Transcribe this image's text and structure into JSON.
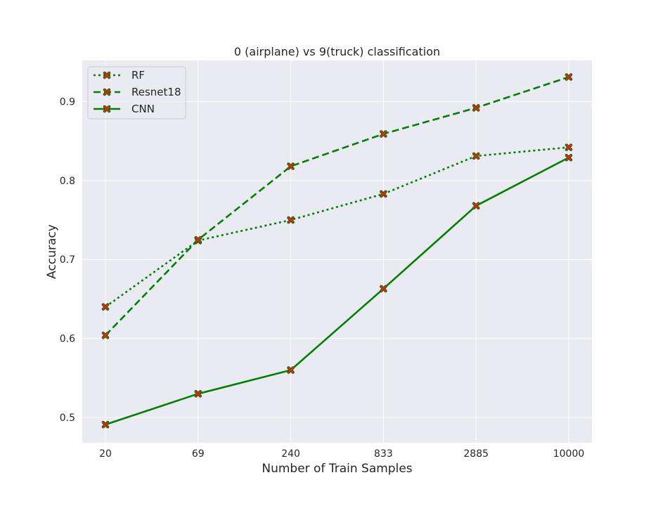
{
  "chart_data": {
    "type": "line",
    "title": "0 (airplane) vs 9(truck) classification",
    "xlabel": "Number of Train Samples",
    "ylabel": "Accuracy",
    "categories": [
      "20",
      "69",
      "240",
      "833",
      "2885",
      "10000"
    ],
    "yticks": [
      "0.5",
      "0.6",
      "0.7",
      "0.8",
      "0.9"
    ],
    "ylim": [
      0.468,
      0.952
    ],
    "grid": true,
    "legend_position": "top-left",
    "series": [
      {
        "name": "RF",
        "style": "dotted",
        "color": "#008000",
        "marker_color": "#cc3300",
        "values": [
          0.64,
          0.724,
          0.75,
          0.783,
          0.831,
          0.842
        ]
      },
      {
        "name": "Resnet18",
        "style": "dashed",
        "color": "#008000",
        "marker_color": "#cc3300",
        "values": [
          0.604,
          0.725,
          0.818,
          0.859,
          0.892,
          0.931
        ]
      },
      {
        "name": "CNN",
        "style": "solid",
        "color": "#008000",
        "marker_color": "#cc3300",
        "values": [
          0.491,
          0.53,
          0.56,
          0.663,
          0.768,
          0.829
        ]
      }
    ]
  }
}
